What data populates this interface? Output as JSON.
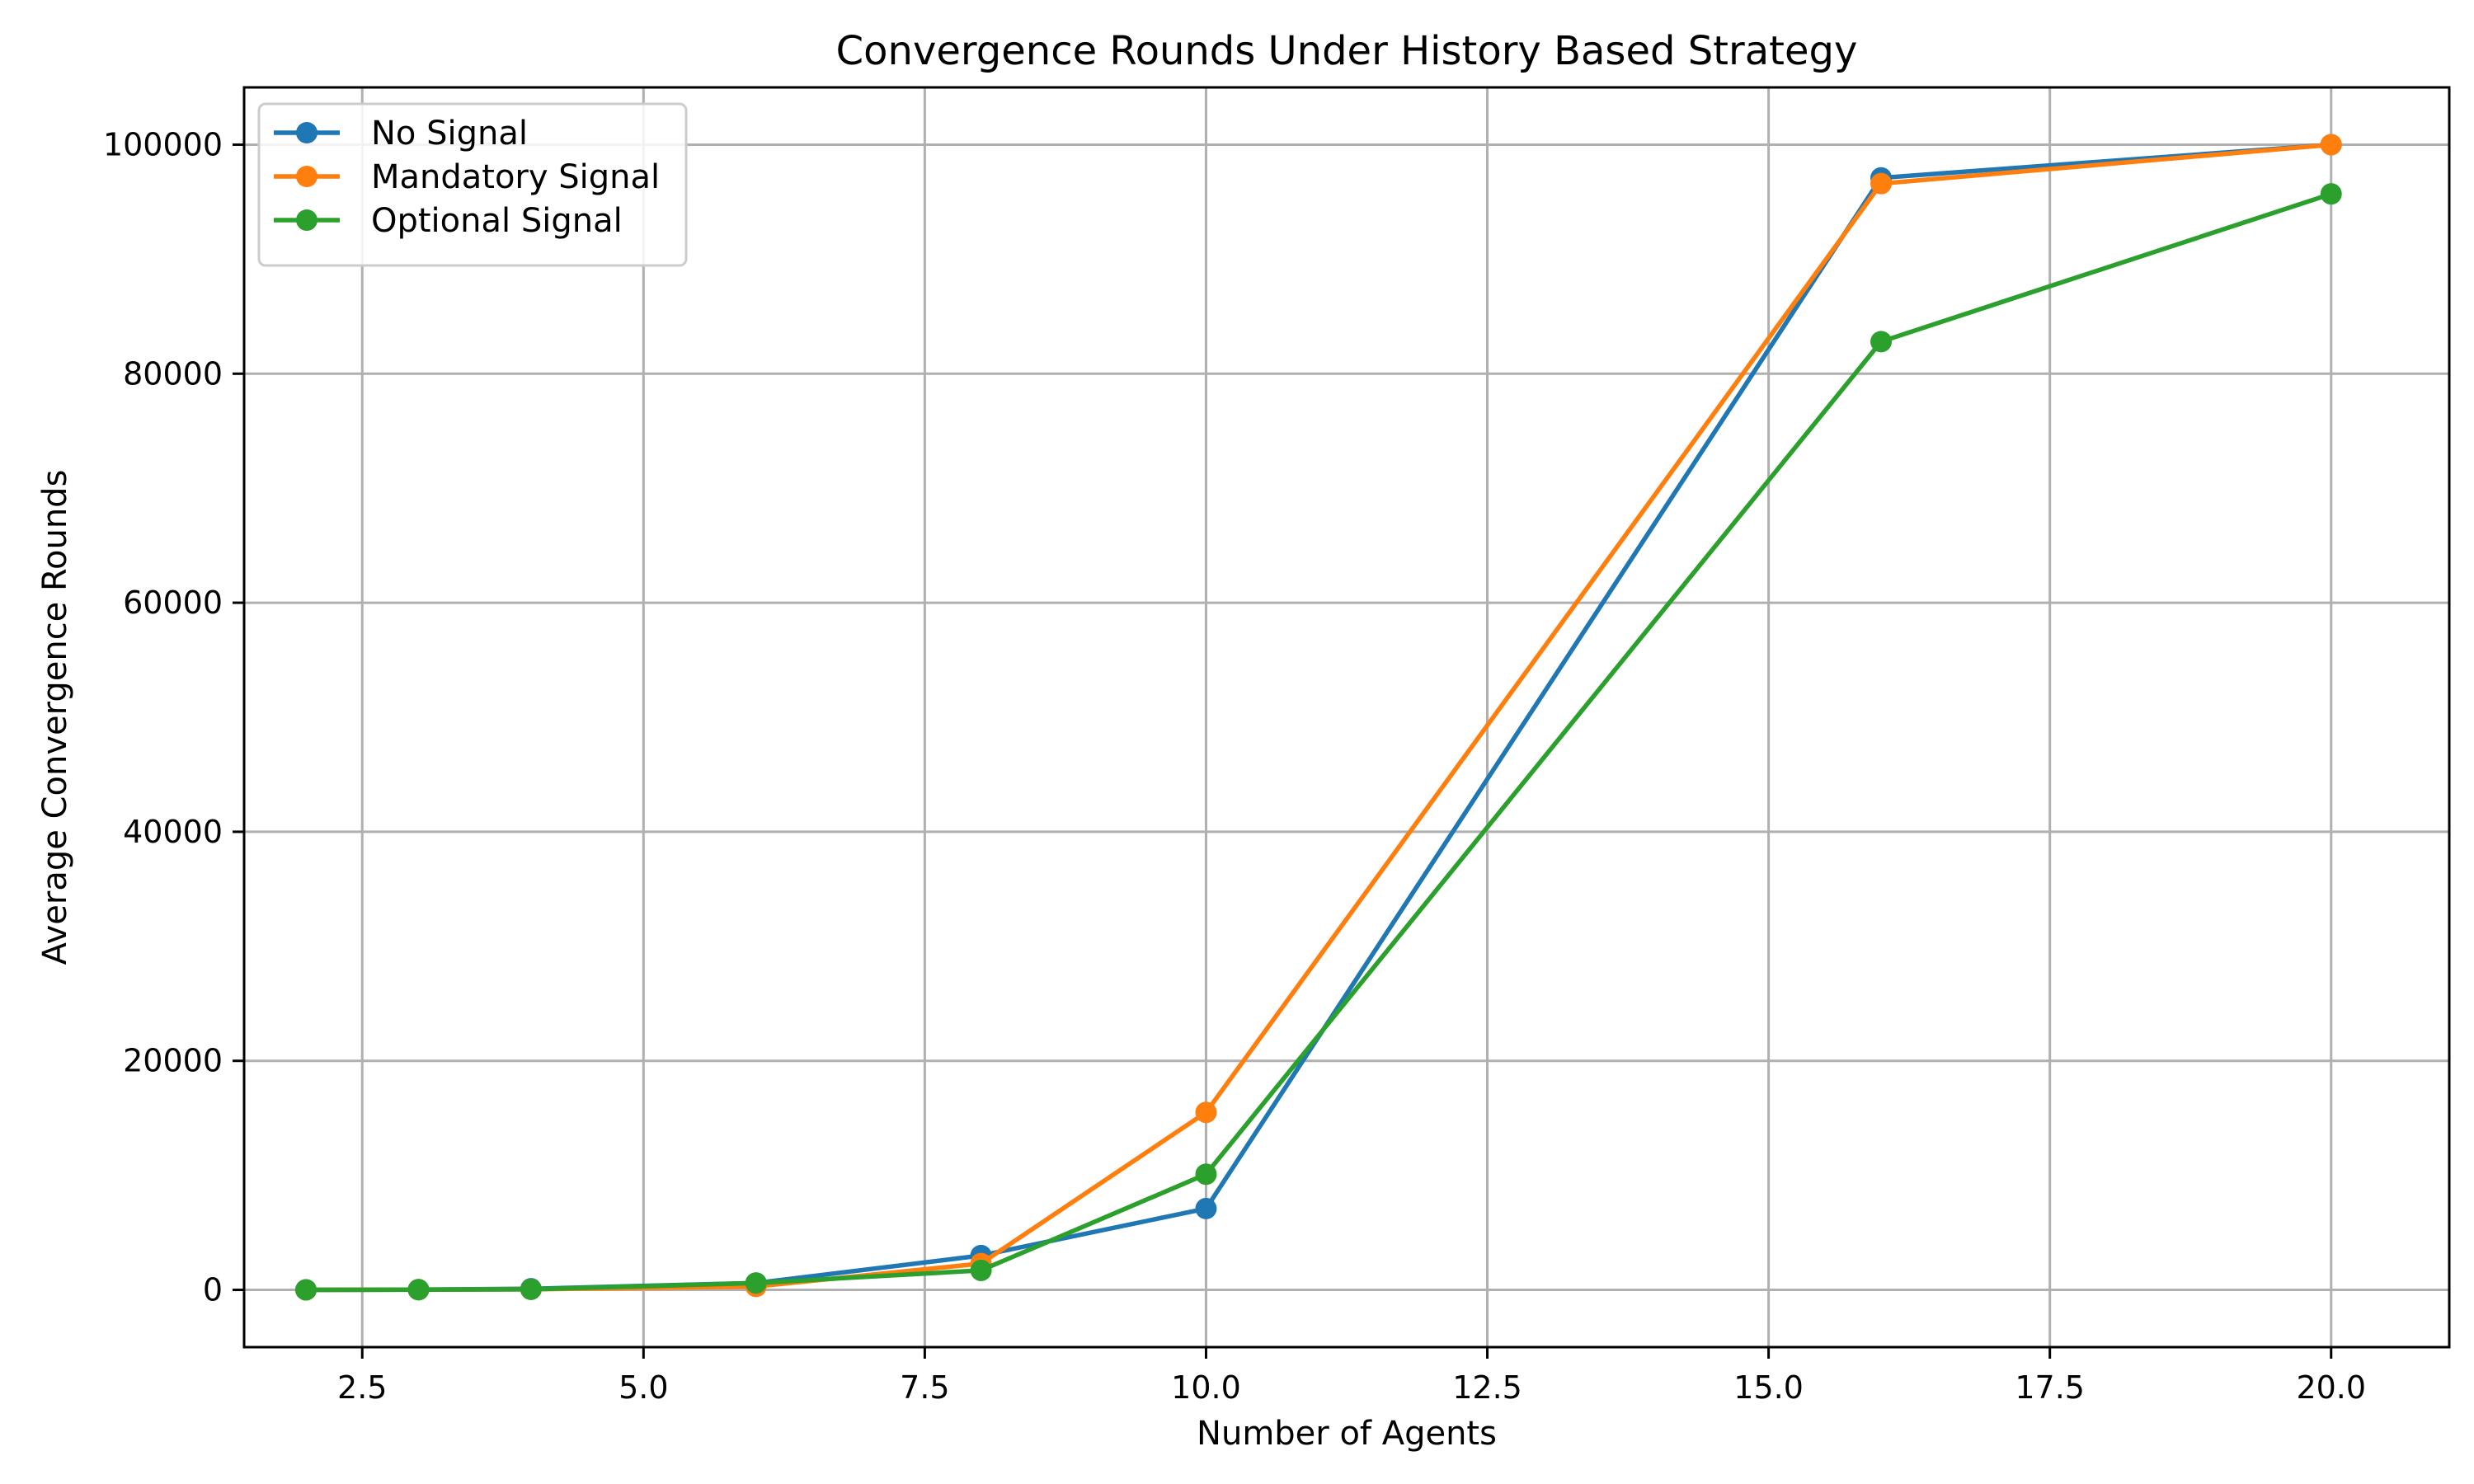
{
  "chart_data": {
    "type": "line",
    "title": "Convergence Rounds Under History Based Strategy",
    "xlabel": "Number of Agents",
    "ylabel": "Average Convergence Rounds",
    "x": [
      2,
      3,
      4,
      6,
      8,
      10,
      16,
      20
    ],
    "xlim": [
      1.45,
      21.05
    ],
    "ylim": [
      -5000,
      105000
    ],
    "xticks": [
      2.5,
      5.0,
      7.5,
      10.0,
      12.5,
      15.0,
      17.5,
      20.0
    ],
    "xtick_labels": [
      "2.5",
      "5.0",
      "7.5",
      "10.0",
      "12.5",
      "15.0",
      "17.5",
      "20.0"
    ],
    "yticks": [
      0,
      20000,
      40000,
      60000,
      80000,
      100000
    ],
    "ytick_labels": [
      "0",
      "20000",
      "40000",
      "60000",
      "80000",
      "100000"
    ],
    "grid": true,
    "legend_position": "top-left",
    "series": [
      {
        "name": "No Signal",
        "color": "#1f77b4",
        "values": [
          5,
          20,
          100,
          600,
          3000,
          7100,
          97100,
          100000
        ]
      },
      {
        "name": "Mandatory Signal",
        "color": "#ff7f0e",
        "values": [
          5,
          20,
          50,
          300,
          2300,
          15500,
          96600,
          100000
        ]
      },
      {
        "name": "Optional Signal",
        "color": "#2ca02c",
        "values": [
          5,
          20,
          50,
          600,
          1700,
          10100,
          82800,
          95700
        ]
      }
    ]
  }
}
